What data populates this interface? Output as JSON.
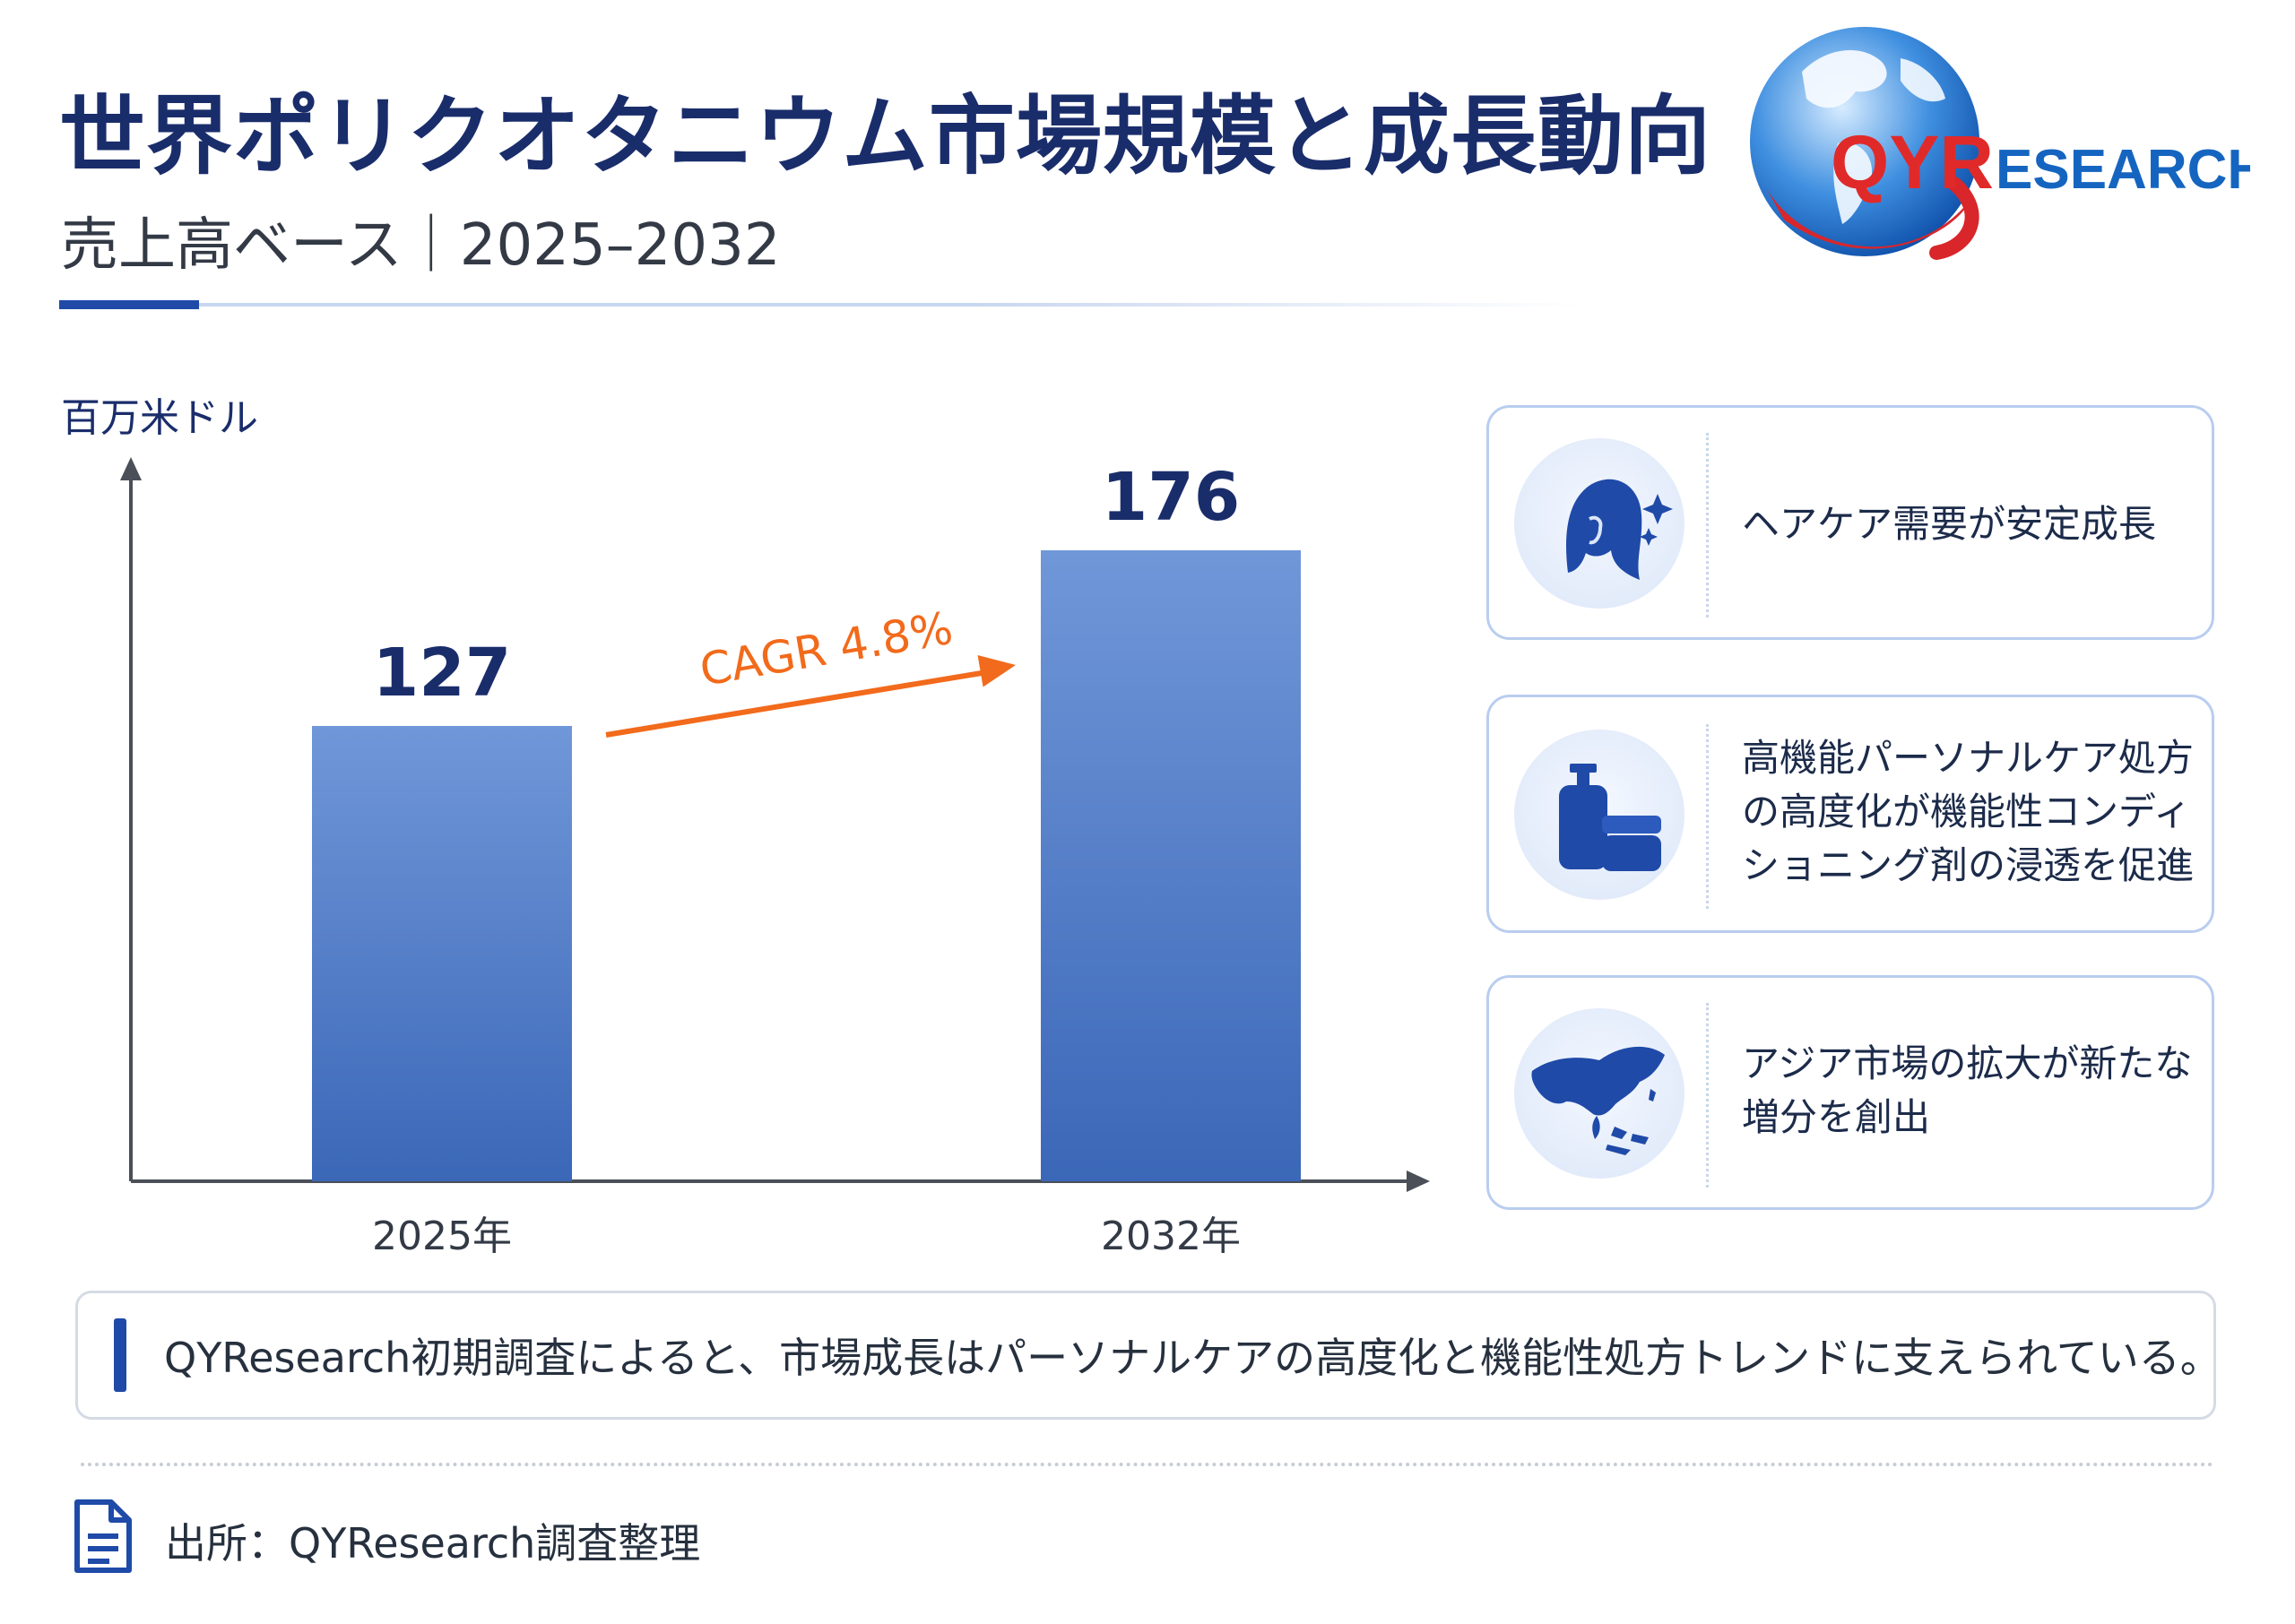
{
  "header": {
    "title": "世界ポリクオタニウム市場規模と成長動向",
    "subtitle": "売上高ベース｜2025–2032"
  },
  "logo": {
    "text_main": "QYR",
    "text_rest": "ESEARCH"
  },
  "chart_data": {
    "type": "bar",
    "ylabel": "百万米ドル",
    "categories": [
      "2025年",
      "2032年"
    ],
    "values": [
      127,
      176
    ],
    "data_labels": [
      "127",
      "176"
    ],
    "annotation": "CAGR 4.8%",
    "colors": {
      "bar_top": "#7097d8",
      "bar_bottom": "#3b67b8",
      "arrow": "#f26a1b",
      "axis": "#4a4f58"
    }
  },
  "cards": [
    {
      "icon": "hair-icon",
      "text": "ヘアケア需要が安定成長"
    },
    {
      "icon": "bottle-jar-icon",
      "text": "高機能パーソナルケア処方の高度化が機能性コンディショニング剤の浸透を促進"
    },
    {
      "icon": "asia-map-icon",
      "text": "アジア市場の拡大が新たな増分を創出"
    }
  ],
  "note": {
    "text": "QYResearch初期調査によると、市場成長はパーソナルケアの高度化と機能性処方トレンドに支えられている。"
  },
  "source": {
    "icon": "document-icon",
    "text": "出所：QYResearch調査整理"
  },
  "colors": {
    "brand_navy": "#1a2d6b",
    "accent_blue": "#1f4aa8",
    "brand_red": "#e02a2a"
  }
}
